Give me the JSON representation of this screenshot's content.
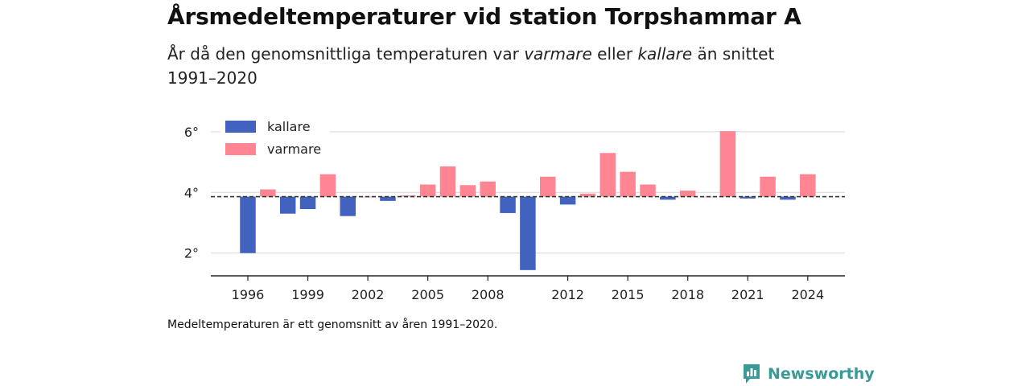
{
  "header": {
    "title": "Årsmedeltemperaturer vid station Torpshammar A",
    "subtitle_pre": "År då den genomsnittliga temperaturen var ",
    "subtitle_warm": "varmare",
    "subtitle_mid": " eller ",
    "subtitle_cold": "kallare",
    "subtitle_post": " än snittet 1991–2020"
  },
  "footer": {
    "note": "Medeltemperaturen är ett genomsnitt av åren 1991–2020.",
    "brand": "Newsworthy"
  },
  "colors": {
    "cold": "#4262bf",
    "warm": "#ff8593",
    "brand": "#3a9a98"
  },
  "chart_data": {
    "type": "bar",
    "baseline": 3.86,
    "ylim": [
      1.25,
      6.5
    ],
    "yticks": [
      2,
      4,
      6
    ],
    "ytick_labels": [
      "2°",
      "4°",
      "6°"
    ],
    "xticks": [
      1996,
      1999,
      2002,
      2005,
      2008,
      2012,
      2015,
      2018,
      2021,
      2024
    ],
    "legend": [
      {
        "name": "kallare",
        "color": "#4262bf"
      },
      {
        "name": "varmare",
        "color": "#ff8593"
      }
    ],
    "legend_position": "top-left",
    "grid": true,
    "years": [
      1996,
      1997,
      1998,
      1999,
      2000,
      2001,
      2002,
      2003,
      2004,
      2005,
      2006,
      2007,
      2008,
      2009,
      2010,
      2011,
      2012,
      2013,
      2014,
      2015,
      2016,
      2017,
      2018,
      2019,
      2020,
      2021,
      2022,
      2023,
      2024
    ],
    "values": [
      2.0,
      4.1,
      3.3,
      3.45,
      4.6,
      3.22,
      3.86,
      3.72,
      3.9,
      4.26,
      4.86,
      4.24,
      4.36,
      3.32,
      1.44,
      4.52,
      3.6,
      3.96,
      5.3,
      4.68,
      4.26,
      3.76,
      4.06,
      3.86,
      6.02,
      3.8,
      4.52,
      3.76,
      4.6
    ]
  }
}
